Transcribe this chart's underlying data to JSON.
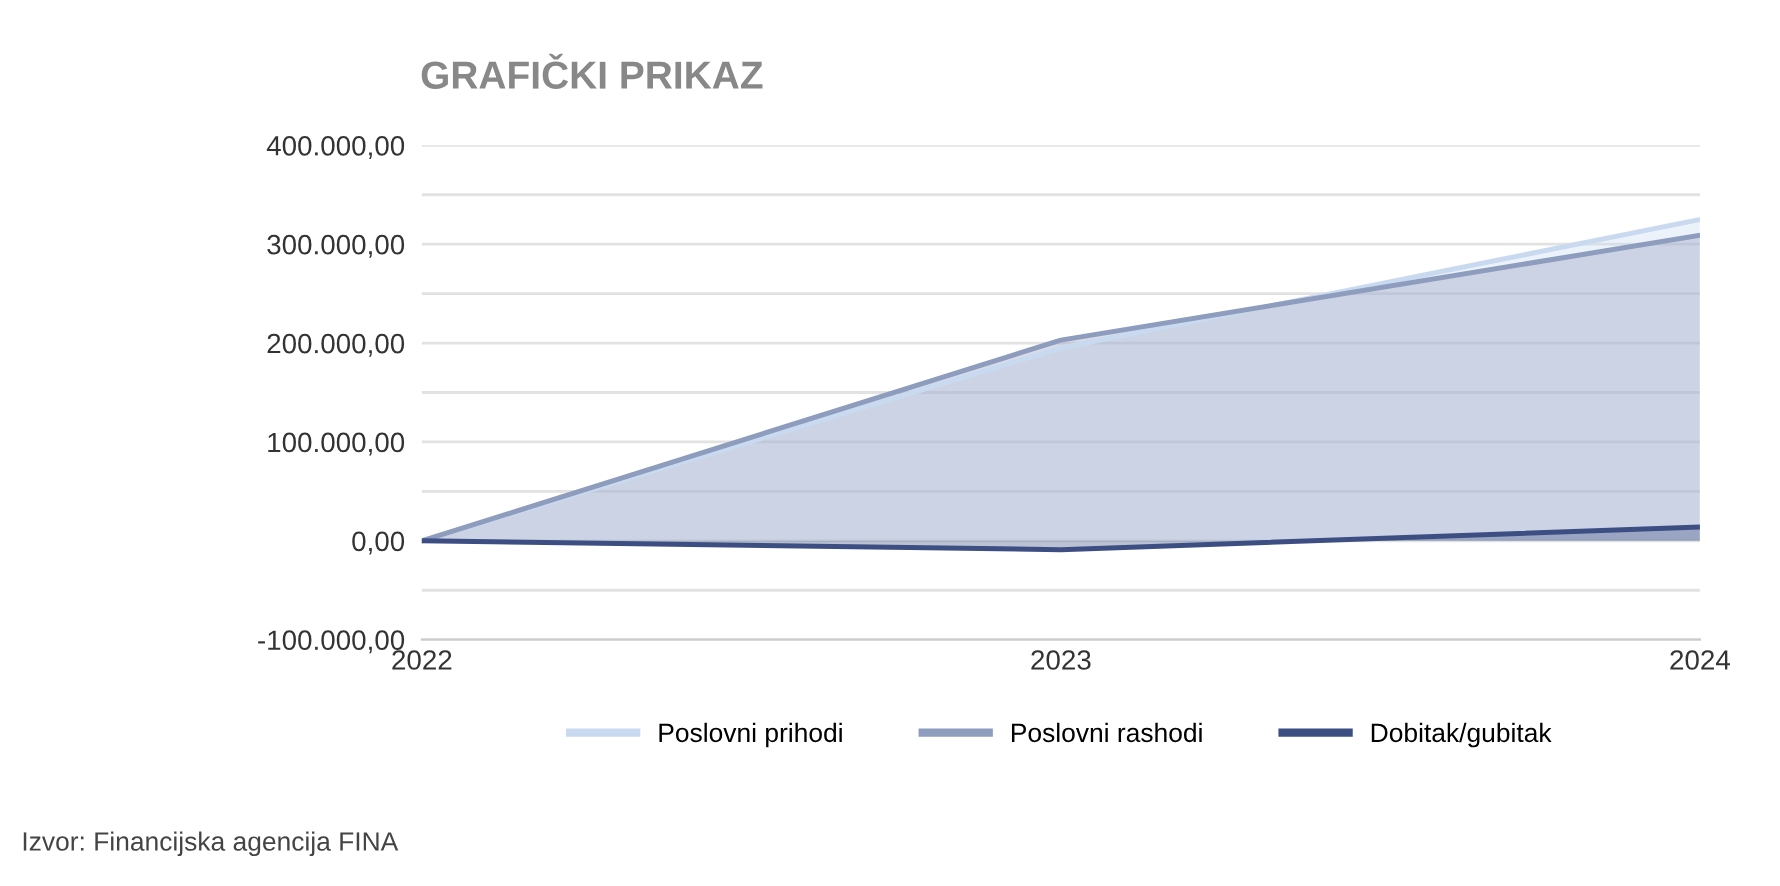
{
  "chart_data": {
    "type": "area",
    "title": "GRAFIČKI PRIKAZ",
    "categories": [
      "2022",
      "2023",
      "2024"
    ],
    "series": [
      {
        "name": "Poslovni prihodi",
        "color": "#c9daf0",
        "values": [
          0,
          195000,
          325000
        ]
      },
      {
        "name": "Poslovni rashodi",
        "color": "#8e9cbd",
        "values": [
          0,
          203000,
          309000
        ]
      },
      {
        "name": "Dobitak/gubitak",
        "color": "#3d4f82",
        "values": [
          0,
          -9000,
          14000
        ]
      }
    ],
    "ylim": [
      -100000,
      400000
    ],
    "yticks": [
      {
        "value": -100000,
        "label": "-100.000,00"
      },
      {
        "value": -50000,
        "label": null
      },
      {
        "value": 0,
        "label": "0,00"
      },
      {
        "value": 50000,
        "label": null
      },
      {
        "value": 100000,
        "label": "100.000,00"
      },
      {
        "value": 150000,
        "label": null
      },
      {
        "value": 200000,
        "label": "200.000,00"
      },
      {
        "value": 250000,
        "label": null
      },
      {
        "value": 300000,
        "label": "300.000,00"
      },
      {
        "value": 350000,
        "label": null
      },
      {
        "value": 400000,
        "label": "400.000,00"
      }
    ],
    "grid": "y",
    "legend": "bottom",
    "annotations": [
      "Izvor: Financijska agencija FINA"
    ]
  }
}
